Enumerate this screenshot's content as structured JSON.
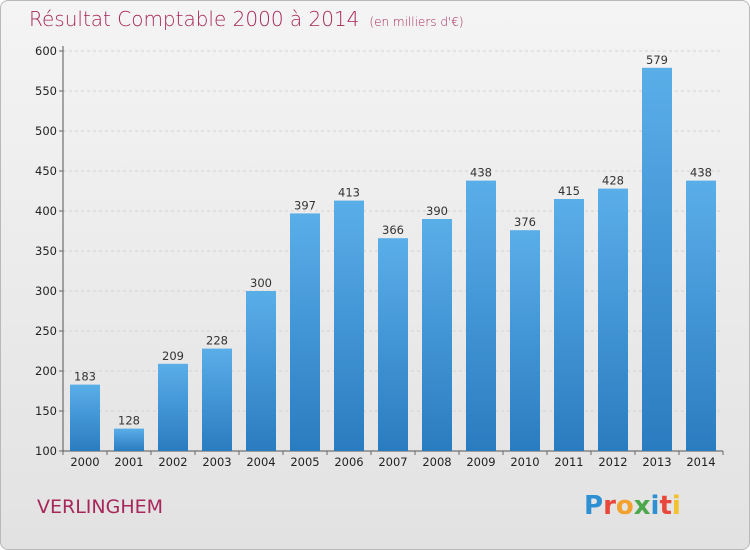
{
  "header": {
    "title": "Résultat Comptable 2000 à 2014",
    "subtitle": "(en milliers d'€)"
  },
  "commune": "VERLINGHEM",
  "logo": {
    "letters": [
      "P",
      "r",
      "o",
      "x",
      "i",
      "t",
      "i"
    ],
    "colors": [
      "#2f8fd3",
      "#e8483b",
      "#f2a12c",
      "#4ca84c",
      "#2f8fd3",
      "#e8483b",
      "#f2c12c"
    ]
  },
  "chart_data": {
    "type": "bar",
    "categories": [
      "2000",
      "2001",
      "2002",
      "2003",
      "2004",
      "2005",
      "2006",
      "2007",
      "2008",
      "2009",
      "2010",
      "2011",
      "2012",
      "2013",
      "2014"
    ],
    "values": [
      183,
      128,
      209,
      228,
      300,
      397,
      413,
      366,
      390,
      438,
      376,
      415,
      428,
      579,
      438
    ],
    "ylim": [
      100,
      600
    ],
    "yticks": [
      100,
      150,
      200,
      250,
      300,
      350,
      400,
      450,
      500,
      550,
      600
    ],
    "grid": true,
    "bar_color_top": "#5aaee8",
    "bar_color_bottom": "#2a7cc0"
  }
}
